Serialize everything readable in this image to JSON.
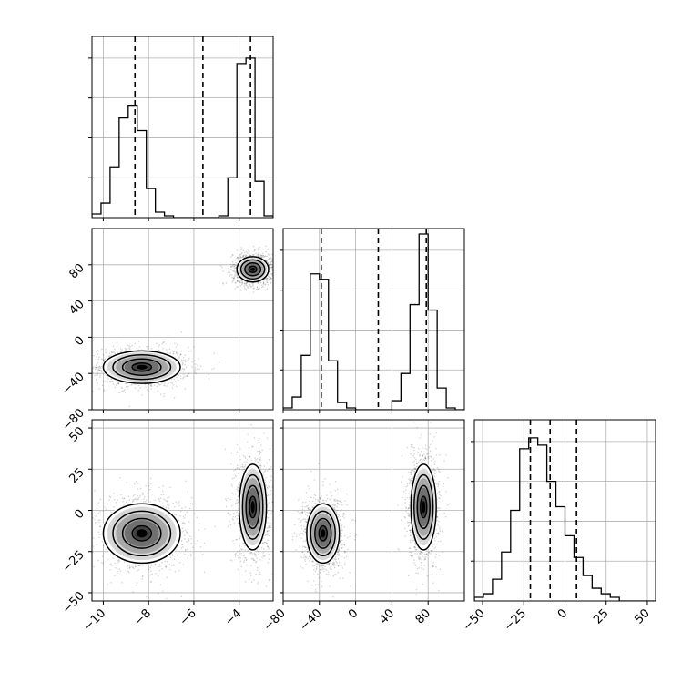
{
  "chart_data": {
    "type": "corner",
    "grid": true,
    "parameters": [
      {
        "range": [
          -10.5,
          -2.5
        ],
        "ticks": [
          -10,
          -8,
          -6,
          -4
        ],
        "tick_labels": [
          "−10",
          "−8",
          "−6",
          "−4"
        ],
        "quantiles": [
          -8.6,
          -5.6,
          -3.5
        ],
        "hist": [
          0.02,
          0.08,
          0.28,
          0.55,
          0.62,
          0.48,
          0.16,
          0.03,
          0.01,
          0.0,
          0.0,
          0.0,
          0.0,
          0.0,
          0.01,
          0.22,
          0.85,
          0.88,
          0.2,
          0.01
        ]
      },
      {
        "range": [
          -80,
          120
        ],
        "ticks": [
          -80,
          -40,
          0,
          40,
          80
        ],
        "tick_labels": [
          "−80",
          "−40",
          "0",
          "40",
          "80"
        ],
        "quantiles": [
          -38,
          25,
          78
        ],
        "hist": [
          0.01,
          0.07,
          0.3,
          0.75,
          0.72,
          0.27,
          0.04,
          0.01,
          0.0,
          0.0,
          0.0,
          0.0,
          0.05,
          0.2,
          0.58,
          0.97,
          0.55,
          0.12,
          0.01,
          0.0
        ]
      },
      {
        "range": [
          -55,
          55
        ],
        "ticks": [
          -50,
          -25,
          0,
          25,
          50
        ],
        "tick_labels": [
          "−50",
          "−25",
          "0",
          "25",
          "50"
        ],
        "quantiles": [
          -21,
          -9,
          7
        ],
        "hist": [
          0.02,
          0.04,
          0.12,
          0.27,
          0.5,
          0.84,
          0.9,
          0.86,
          0.66,
          0.52,
          0.36,
          0.24,
          0.14,
          0.07,
          0.04,
          0.02,
          0.0,
          0.0,
          0.0,
          0.0
        ]
      }
    ],
    "blobs": [
      {
        "pair": [
          1,
          0
        ],
        "clusters": [
          {
            "cx": -8.3,
            "cy": -33,
            "sx": 0.85,
            "sy": 9
          },
          {
            "cx": -3.4,
            "cy": 75,
            "sx": 0.35,
            "sy": 7
          }
        ]
      },
      {
        "pair": [
          2,
          0
        ],
        "clusters": [
          {
            "cx": -8.3,
            "cy": -14,
            "sx": 0.85,
            "sy": 9
          },
          {
            "cx": -3.4,
            "cy": 2,
            "sx": 0.3,
            "sy": 13
          }
        ]
      },
      {
        "pair": [
          2,
          1
        ],
        "clusters": [
          {
            "cx": -36,
            "cy": -14,
            "sx": 9,
            "sy": 9
          },
          {
            "cx": 75,
            "cy": 2,
            "sx": 7,
            "sy": 13
          }
        ]
      }
    ],
    "contour_levels_sigma": [
      0.5,
      1.0,
      1.5,
      2.0
    ]
  }
}
